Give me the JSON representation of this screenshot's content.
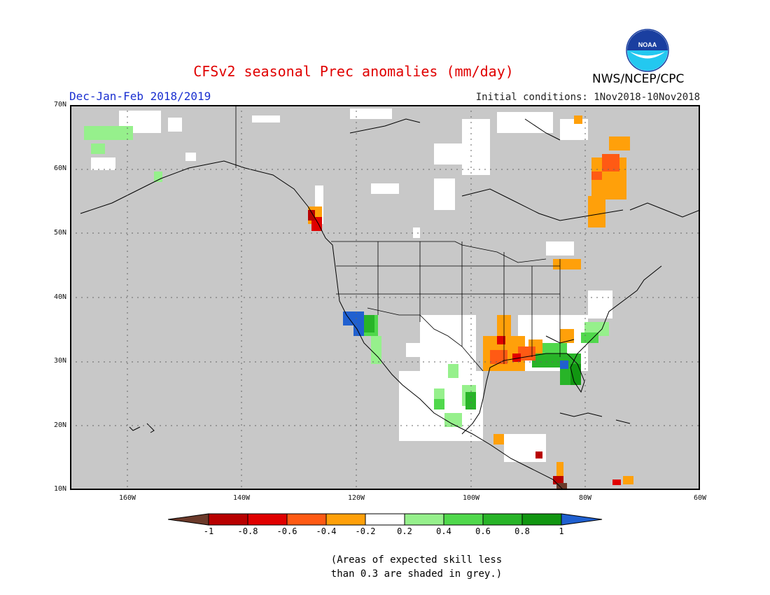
{
  "header": {
    "title": "CFSv2 seasonal Prec anomalies (mm/day)",
    "period": "Dec-Jan-Feb 2018/2019",
    "initial_conditions": "Initial conditions: 1Nov2018-10Nov2018",
    "agency": "NWS/NCEP/CPC",
    "logo_text": "NOAA"
  },
  "map": {
    "lon_range": [
      -170,
      -60
    ],
    "lat_range": [
      10,
      70
    ],
    "lat_labels": [
      "70N",
      "60N",
      "50N",
      "40N",
      "30N",
      "20N",
      "10N"
    ],
    "lon_labels": [
      "160W",
      "140W",
      "120W",
      "100W",
      "80W",
      "60W"
    ],
    "masked_color": "#c8c8c8"
  },
  "colorbar": {
    "labels": [
      "-1",
      "-0.8",
      "-0.6",
      "-0.4",
      "-0.2",
      "0.2",
      "0.4",
      "0.6",
      "0.8",
      "1"
    ],
    "colors": [
      "#6b3a2a",
      "#b80000",
      "#e00000",
      "#ff5a14",
      "#ffa00a",
      "#ffffff",
      "#96f08c",
      "#50d84c",
      "#28b428",
      "#119611",
      "#2060d0"
    ]
  },
  "note": {
    "line1": "(Areas of expected skill less",
    "line2": "than 0.3 are shaded in grey.)"
  }
}
